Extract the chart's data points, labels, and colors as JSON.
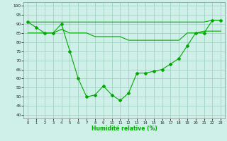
{
  "x_values": [
    0,
    1,
    2,
    3,
    4,
    5,
    6,
    7,
    8,
    9,
    10,
    11,
    12,
    13,
    14,
    15,
    16,
    17,
    18,
    19,
    20,
    21,
    22,
    23
  ],
  "line_main": [
    91,
    88,
    85,
    85,
    90,
    75,
    60,
    50,
    51,
    56,
    51,
    48,
    52,
    63,
    63,
    64,
    65,
    68,
    71,
    78,
    85,
    85,
    92,
    92
  ],
  "line_top": [
    91,
    91,
    91,
    91,
    91,
    91,
    91,
    91,
    91,
    91,
    91,
    91,
    91,
    91,
    91,
    91,
    91,
    91,
    91,
    91,
    91,
    91,
    92,
    92
  ],
  "line_mid": [
    85,
    85,
    85,
    85,
    87,
    85,
    85,
    85,
    83,
    83,
    83,
    83,
    81,
    81,
    81,
    81,
    81,
    81,
    81,
    85,
    85,
    86,
    86,
    86
  ],
  "bg_color": "#cff0e8",
  "grid_color": "#99ccbb",
  "line_color": "#00aa00",
  "xlabel": "Humidité relative (%)",
  "xlim": [
    -0.5,
    23.5
  ],
  "ylim": [
    38,
    102
  ],
  "yticks": [
    40,
    45,
    50,
    55,
    60,
    65,
    70,
    75,
    80,
    85,
    90,
    95,
    100
  ]
}
